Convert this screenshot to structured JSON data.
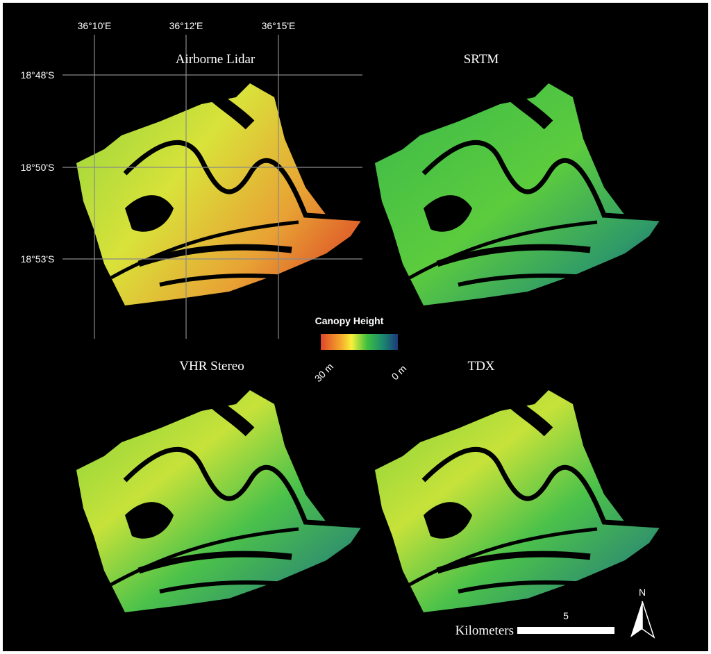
{
  "graticule": {
    "longitudes": [
      "36°10'E",
      "36°12'E",
      "36°15'E"
    ],
    "latitudes": [
      "18°48'S",
      "18°50'S",
      "18°53'S"
    ]
  },
  "panels": [
    {
      "title": "Airborne Lidar"
    },
    {
      "title": "SRTM"
    },
    {
      "title": "VHR Stereo"
    },
    {
      "title": "TDX"
    }
  ],
  "legend": {
    "title": "Canopy Height",
    "max_label": "30 m",
    "min_label": "0 m"
  },
  "scale_bar": {
    "unit": "Kilometers",
    "distance": "5"
  },
  "north_arrow": {
    "label": "N"
  }
}
